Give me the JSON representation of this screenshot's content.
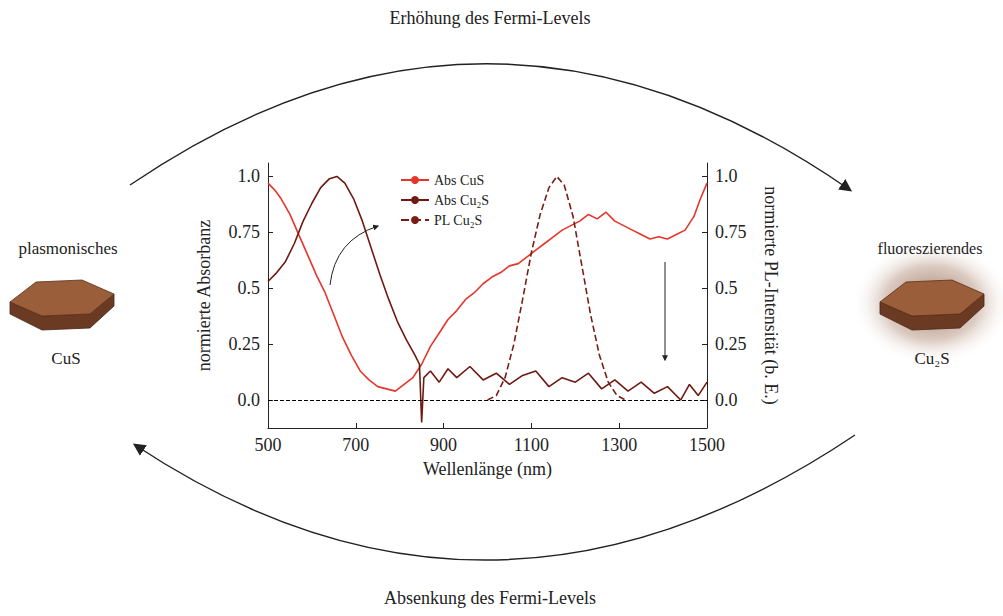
{
  "chart_data": {
    "type": "line",
    "xlabel": "Wellenlänge (nm)",
    "ylabel": "normierte Absorbanz",
    "y2label": "normierte PL-Intensität (b. E.)",
    "xlim": [
      500,
      1500
    ],
    "xticks": [
      500,
      700,
      900,
      1100,
      1300,
      1500
    ],
    "ylim": [
      -0.125,
      1.06
    ],
    "yticks": [
      {
        "value": 0,
        "label": "0.0"
      },
      0.25,
      0.5,
      0.75,
      {
        "value": 1,
        "label": "1.0"
      }
    ],
    "y2lim": [
      -0.125,
      1.06
    ],
    "y2ticks": [
      {
        "value": 0,
        "label": "0.0"
      },
      0.25,
      0.5,
      0.75,
      {
        "value": 1,
        "label": "1.0"
      }
    ],
    "hline": 0,
    "grid": false,
    "legend": "upper center",
    "series": [
      {
        "name": "Abs CuS",
        "color": "#e8352b",
        "line_style": "solid",
        "x": [
          500,
          515,
          530,
          550,
          570,
          590,
          610,
          630,
          650,
          670,
          690,
          710,
          730,
          750,
          770,
          790,
          810,
          830,
          850,
          870,
          890,
          910,
          930,
          950,
          970,
          990,
          1010,
          1030,
          1050,
          1070,
          1090,
          1110,
          1130,
          1150,
          1170,
          1190,
          1210,
          1230,
          1250,
          1270,
          1290,
          1310,
          1330,
          1350,
          1370,
          1390,
          1410,
          1430,
          1450,
          1470,
          1485,
          1500
        ],
        "values": [
          0.97,
          0.94,
          0.9,
          0.83,
          0.74,
          0.65,
          0.56,
          0.48,
          0.38,
          0.28,
          0.2,
          0.13,
          0.09,
          0.06,
          0.05,
          0.04,
          0.07,
          0.1,
          0.16,
          0.24,
          0.3,
          0.36,
          0.4,
          0.45,
          0.48,
          0.52,
          0.55,
          0.57,
          0.6,
          0.61,
          0.64,
          0.67,
          0.7,
          0.73,
          0.76,
          0.78,
          0.8,
          0.83,
          0.81,
          0.84,
          0.8,
          0.78,
          0.76,
          0.74,
          0.72,
          0.73,
          0.72,
          0.74,
          0.76,
          0.82,
          0.9,
          0.97
        ]
      },
      {
        "name": "Abs Cu₂S",
        "color": "#6e1a12",
        "line_style": "solid",
        "x": [
          500,
          520,
          540,
          560,
          580,
          600,
          620,
          640,
          657,
          675,
          695,
          715,
          735,
          755,
          775,
          795,
          815,
          835,
          845,
          850,
          855,
          870,
          890,
          910,
          930,
          960,
          990,
          1020,
          1050,
          1080,
          1110,
          1140,
          1170,
          1200,
          1230,
          1260,
          1290,
          1320,
          1350,
          1380,
          1410,
          1440,
          1460,
          1480,
          1500
        ],
        "values": [
          0.53,
          0.57,
          0.62,
          0.7,
          0.8,
          0.88,
          0.95,
          0.99,
          1.0,
          0.97,
          0.9,
          0.8,
          0.68,
          0.56,
          0.45,
          0.35,
          0.27,
          0.2,
          0.16,
          -0.1,
          0.1,
          0.13,
          0.08,
          0.14,
          0.1,
          0.15,
          0.09,
          0.12,
          0.07,
          0.11,
          0.13,
          0.06,
          0.1,
          0.08,
          0.12,
          0.05,
          0.09,
          0.04,
          0.08,
          0.03,
          0.06,
          0.0,
          0.07,
          0.02,
          0.08
        ]
      },
      {
        "name": "PL Cu₂S",
        "color": "#7a1e14",
        "line_style": "dashed",
        "axis": "y2",
        "x": [
          1000,
          1020,
          1040,
          1060,
          1080,
          1100,
          1120,
          1140,
          1158,
          1175,
          1195,
          1215,
          1235,
          1255,
          1275,
          1295,
          1315
        ],
        "values": [
          0,
          0.02,
          0.1,
          0.25,
          0.45,
          0.66,
          0.83,
          0.95,
          1.0,
          0.96,
          0.82,
          0.6,
          0.38,
          0.2,
          0.08,
          0.02,
          0
        ]
      }
    ]
  },
  "diagram": {
    "top_arrow": "Erhöhung des Fermi-Levels",
    "bottom_arrow": "Absenkung des Fermi-Levels",
    "left": {
      "label": "plasmonisches",
      "name": "CuS"
    },
    "right": {
      "label": "fluoreszierendes",
      "name": "Cu₂S"
    }
  }
}
